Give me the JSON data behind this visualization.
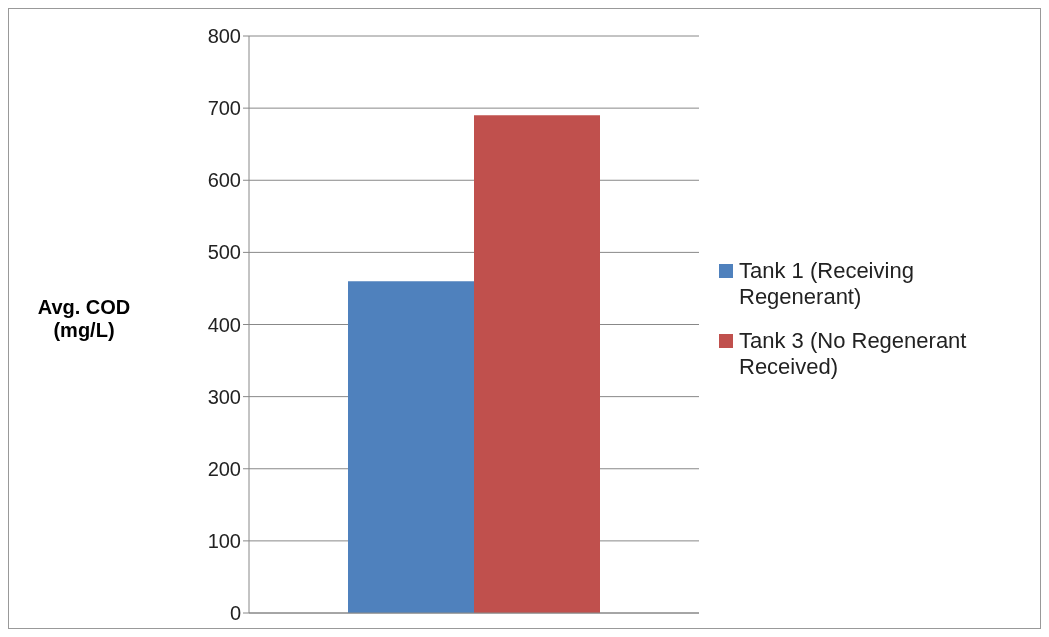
{
  "chart_data": {
    "type": "bar",
    "ylabel": "Avg. COD (mg/L)",
    "categories": [
      null
    ],
    "series": [
      {
        "name": "Tank 1 (Receiving Regenerant)",
        "color": "#4f81bd",
        "values": [
          460
        ]
      },
      {
        "name": "Tank 3 (No Regenerant Received)",
        "color": "#c0504d",
        "values": [
          690
        ]
      }
    ],
    "ylim": [
      0,
      800
    ],
    "yticks": [
      0,
      100,
      200,
      300,
      400,
      500,
      600,
      700,
      800
    ],
    "grid": "y",
    "legend": "right"
  }
}
